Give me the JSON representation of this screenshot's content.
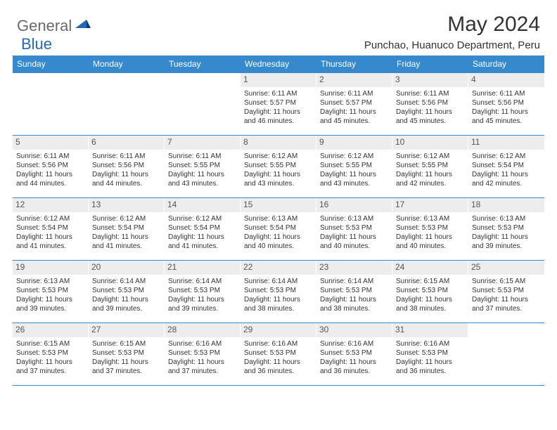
{
  "brand": {
    "part1": "General",
    "part2": "Blue",
    "color1": "#6a6a6a",
    "color2": "#2469b3"
  },
  "title": "May 2024",
  "location": "Punchao, Huanuco Department, Peru",
  "colors": {
    "header_bg": "#3789ce",
    "header_text": "#ffffff",
    "daynum_bg": "#ededed",
    "border": "#3789ce",
    "text": "#333333"
  },
  "day_headers": [
    "Sunday",
    "Monday",
    "Tuesday",
    "Wednesday",
    "Thursday",
    "Friday",
    "Saturday"
  ],
  "weeks": [
    [
      {
        "n": "",
        "empty": true
      },
      {
        "n": "",
        "empty": true
      },
      {
        "n": "",
        "empty": true
      },
      {
        "n": "1",
        "sunrise": "6:11 AM",
        "sunset": "5:57 PM",
        "daylight": "11 hours and 46 minutes."
      },
      {
        "n": "2",
        "sunrise": "6:11 AM",
        "sunset": "5:57 PM",
        "daylight": "11 hours and 45 minutes."
      },
      {
        "n": "3",
        "sunrise": "6:11 AM",
        "sunset": "5:56 PM",
        "daylight": "11 hours and 45 minutes."
      },
      {
        "n": "4",
        "sunrise": "6:11 AM",
        "sunset": "5:56 PM",
        "daylight": "11 hours and 45 minutes."
      }
    ],
    [
      {
        "n": "5",
        "sunrise": "6:11 AM",
        "sunset": "5:56 PM",
        "daylight": "11 hours and 44 minutes."
      },
      {
        "n": "6",
        "sunrise": "6:11 AM",
        "sunset": "5:56 PM",
        "daylight": "11 hours and 44 minutes."
      },
      {
        "n": "7",
        "sunrise": "6:11 AM",
        "sunset": "5:55 PM",
        "daylight": "11 hours and 43 minutes."
      },
      {
        "n": "8",
        "sunrise": "6:12 AM",
        "sunset": "5:55 PM",
        "daylight": "11 hours and 43 minutes."
      },
      {
        "n": "9",
        "sunrise": "6:12 AM",
        "sunset": "5:55 PM",
        "daylight": "11 hours and 43 minutes."
      },
      {
        "n": "10",
        "sunrise": "6:12 AM",
        "sunset": "5:55 PM",
        "daylight": "11 hours and 42 minutes."
      },
      {
        "n": "11",
        "sunrise": "6:12 AM",
        "sunset": "5:54 PM",
        "daylight": "11 hours and 42 minutes."
      }
    ],
    [
      {
        "n": "12",
        "sunrise": "6:12 AM",
        "sunset": "5:54 PM",
        "daylight": "11 hours and 41 minutes."
      },
      {
        "n": "13",
        "sunrise": "6:12 AM",
        "sunset": "5:54 PM",
        "daylight": "11 hours and 41 minutes."
      },
      {
        "n": "14",
        "sunrise": "6:12 AM",
        "sunset": "5:54 PM",
        "daylight": "11 hours and 41 minutes."
      },
      {
        "n": "15",
        "sunrise": "6:13 AM",
        "sunset": "5:54 PM",
        "daylight": "11 hours and 40 minutes."
      },
      {
        "n": "16",
        "sunrise": "6:13 AM",
        "sunset": "5:53 PM",
        "daylight": "11 hours and 40 minutes."
      },
      {
        "n": "17",
        "sunrise": "6:13 AM",
        "sunset": "5:53 PM",
        "daylight": "11 hours and 40 minutes."
      },
      {
        "n": "18",
        "sunrise": "6:13 AM",
        "sunset": "5:53 PM",
        "daylight": "11 hours and 39 minutes."
      }
    ],
    [
      {
        "n": "19",
        "sunrise": "6:13 AM",
        "sunset": "5:53 PM",
        "daylight": "11 hours and 39 minutes."
      },
      {
        "n": "20",
        "sunrise": "6:14 AM",
        "sunset": "5:53 PM",
        "daylight": "11 hours and 39 minutes."
      },
      {
        "n": "21",
        "sunrise": "6:14 AM",
        "sunset": "5:53 PM",
        "daylight": "11 hours and 39 minutes."
      },
      {
        "n": "22",
        "sunrise": "6:14 AM",
        "sunset": "5:53 PM",
        "daylight": "11 hours and 38 minutes."
      },
      {
        "n": "23",
        "sunrise": "6:14 AM",
        "sunset": "5:53 PM",
        "daylight": "11 hours and 38 minutes."
      },
      {
        "n": "24",
        "sunrise": "6:15 AM",
        "sunset": "5:53 PM",
        "daylight": "11 hours and 38 minutes."
      },
      {
        "n": "25",
        "sunrise": "6:15 AM",
        "sunset": "5:53 PM",
        "daylight": "11 hours and 37 minutes."
      }
    ],
    [
      {
        "n": "26",
        "sunrise": "6:15 AM",
        "sunset": "5:53 PM",
        "daylight": "11 hours and 37 minutes."
      },
      {
        "n": "27",
        "sunrise": "6:15 AM",
        "sunset": "5:53 PM",
        "daylight": "11 hours and 37 minutes."
      },
      {
        "n": "28",
        "sunrise": "6:16 AM",
        "sunset": "5:53 PM",
        "daylight": "11 hours and 37 minutes."
      },
      {
        "n": "29",
        "sunrise": "6:16 AM",
        "sunset": "5:53 PM",
        "daylight": "11 hours and 36 minutes."
      },
      {
        "n": "30",
        "sunrise": "6:16 AM",
        "sunset": "5:53 PM",
        "daylight": "11 hours and 36 minutes."
      },
      {
        "n": "31",
        "sunrise": "6:16 AM",
        "sunset": "5:53 PM",
        "daylight": "11 hours and 36 minutes."
      },
      {
        "n": "",
        "empty": true
      }
    ]
  ],
  "labels": {
    "sunrise": "Sunrise:",
    "sunset": "Sunset:",
    "daylight": "Daylight:"
  }
}
